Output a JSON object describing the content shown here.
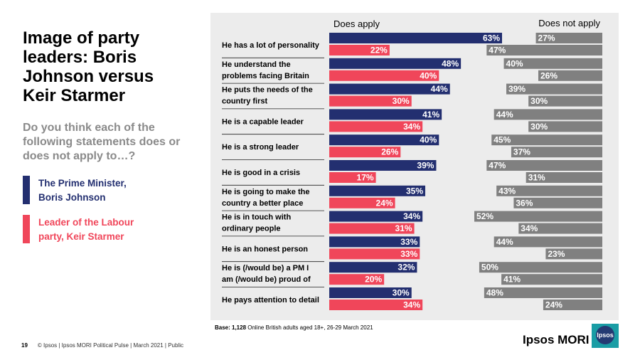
{
  "slide": {
    "title": "Image of party leaders: Boris Johnson versus Keir Starmer",
    "subtitle": "Do you think each of the following statements does or does not apply to…?",
    "page_number": "19",
    "footer_text": "© Ipsos | Ipsos MORI Political Pulse | March 2021 | Public",
    "base_label": "Base: 1,128",
    "base_text": " Online British adults aged 18+, 26-29 March 2021",
    "brand": "Ipsos MORI",
    "logo_text": "Ipsos"
  },
  "legend": [
    {
      "line1": "The Prime Minister,",
      "line2": "Boris Johnson",
      "color": "#232f70"
    },
    {
      "line1": "Leader of the Labour",
      "line2": "party, Keir Starmer",
      "color": "#f0465a"
    }
  ],
  "colors": {
    "johnson": "#232f70",
    "starmer": "#f0465a",
    "not_apply": "#808080",
    "panel": "#ececec"
  },
  "chart_data": {
    "type": "bar",
    "orientation": "horizontal",
    "column_headers": [
      "Does apply",
      "Does not apply"
    ],
    "unit": "%",
    "categories": [
      [
        "He has a lot of personality"
      ],
      [
        "He understand the",
        "problems facing Britain"
      ],
      [
        "He puts the needs of the",
        "country first"
      ],
      [
        "He is a capable leader"
      ],
      [
        "He is a strong leader"
      ],
      [
        "He is good in a crisis"
      ],
      [
        "He is going to make the",
        "country a better place"
      ],
      [
        "He is in touch with",
        "ordinary people"
      ],
      [
        "He is an honest person"
      ],
      [
        "He is (/would be) a PM I",
        "am (/would be) proud of"
      ],
      [
        "He pays attention to detail"
      ]
    ],
    "series": [
      {
        "name": "Boris Johnson - Does apply",
        "values": [
          63,
          48,
          44,
          41,
          40,
          39,
          35,
          34,
          33,
          32,
          30
        ]
      },
      {
        "name": "Keir Starmer - Does apply",
        "values": [
          22,
          40,
          30,
          34,
          26,
          17,
          24,
          31,
          33,
          20,
          34
        ]
      },
      {
        "name": "Boris Johnson - Does not apply",
        "values": [
          27,
          40,
          39,
          44,
          45,
          47,
          43,
          52,
          44,
          50,
          48
        ]
      },
      {
        "name": "Keir Starmer - Does not apply",
        "values": [
          47,
          26,
          30,
          30,
          37,
          31,
          36,
          34,
          23,
          41,
          24
        ]
      }
    ],
    "xlim": [
      0,
      100
    ]
  }
}
